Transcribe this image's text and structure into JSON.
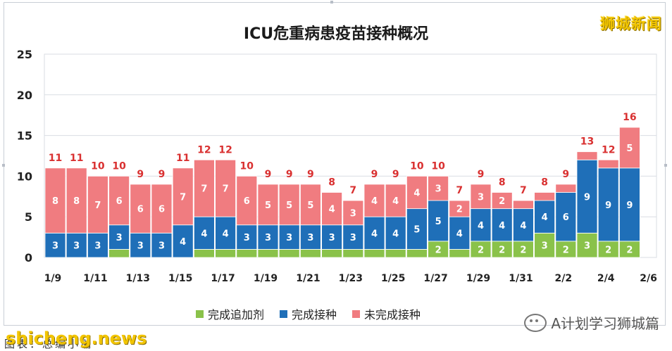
{
  "watermarks": {
    "top_right": "狮城新闻",
    "bottom_left": "shicheng.news",
    "brand": "A计划学习狮城篇",
    "caption": "图表：总编小瑞"
  },
  "chart_data": {
    "type": "bar",
    "stacked": true,
    "title": "ICU危重病患疫苗接种概况",
    "xlabel": "",
    "ylabel": "",
    "ylim": [
      0,
      25
    ],
    "yticks": [
      0,
      5,
      10,
      15,
      20,
      25
    ],
    "grid": true,
    "legend_position": "bottom",
    "colors": {
      "booster": "#8ac24a",
      "vaccinated": "#1f6fb8",
      "unvaccinated": "#f07c80",
      "total_label": "#d93030"
    },
    "categories": [
      "1/9",
      "1/10",
      "1/11",
      "1/12",
      "1/13",
      "1/14",
      "1/15",
      "1/16",
      "1/17",
      "1/18",
      "1/19",
      "1/20",
      "1/21",
      "1/22",
      "1/23",
      "1/24",
      "1/25",
      "1/26",
      "1/27",
      "1/28",
      "1/29",
      "1/30",
      "1/31",
      "2/1",
      "2/2",
      "2/3",
      "2/4",
      "2/5"
    ],
    "x_tick_labels": [
      "1/9",
      "1/11",
      "1/13",
      "1/15",
      "1/17",
      "1/19",
      "1/21",
      "1/23",
      "1/25",
      "1/27",
      "1/29",
      "1/31",
      "2/2",
      "2/4",
      "2/6"
    ],
    "series": [
      {
        "name": "完成追加剂",
        "key": "booster",
        "values": [
          0,
          0,
          0,
          1,
          0,
          0,
          0,
          1,
          1,
          1,
          1,
          1,
          1,
          1,
          1,
          1,
          1,
          1,
          2,
          1,
          2,
          2,
          2,
          3,
          2,
          3,
          2,
          2
        ],
        "labels": [
          null,
          null,
          null,
          null,
          null,
          null,
          null,
          null,
          null,
          null,
          null,
          null,
          null,
          null,
          null,
          null,
          null,
          null,
          "2",
          null,
          "2",
          "2",
          "2",
          "3",
          "2",
          "3",
          "2",
          "2"
        ]
      },
      {
        "name": "完成接种",
        "key": "vaccinated",
        "values": [
          3,
          3,
          3,
          3,
          3,
          3,
          4,
          4,
          4,
          3,
          3,
          3,
          3,
          3,
          3,
          4,
          4,
          5,
          5,
          4,
          4,
          4,
          4,
          4,
          6,
          9,
          9,
          9
        ],
        "labels": [
          "3",
          "3",
          "3",
          "3",
          "3",
          "3",
          "4",
          "4",
          "4",
          "3",
          "3",
          "3",
          "3",
          "3",
          "3",
          "4",
          "4",
          "5",
          "5",
          "4",
          "4",
          "4",
          "4",
          "4",
          "6",
          "9",
          "9",
          "9"
        ]
      },
      {
        "name": "未完成接种",
        "key": "unvaccinated",
        "values": [
          8,
          8,
          7,
          6,
          6,
          6,
          7,
          7,
          7,
          6,
          5,
          5,
          5,
          4,
          3,
          4,
          4,
          4,
          3,
          2,
          3,
          2,
          1,
          1,
          1,
          1,
          1,
          5
        ],
        "labels": [
          "8",
          "8",
          "7",
          "6",
          "6",
          "6",
          "7",
          "7",
          "7",
          "6",
          "5",
          "5",
          "5",
          "4",
          "3",
          "4",
          "4",
          "4",
          "3",
          "2",
          "3",
          "2",
          null,
          null,
          null,
          null,
          null,
          "5"
        ]
      }
    ],
    "totals": [
      11,
      11,
      10,
      10,
      9,
      9,
      11,
      12,
      12,
      10,
      9,
      9,
      9,
      8,
      7,
      9,
      9,
      10,
      10,
      7,
      9,
      8,
      7,
      8,
      9,
      13,
      12,
      16
    ]
  }
}
